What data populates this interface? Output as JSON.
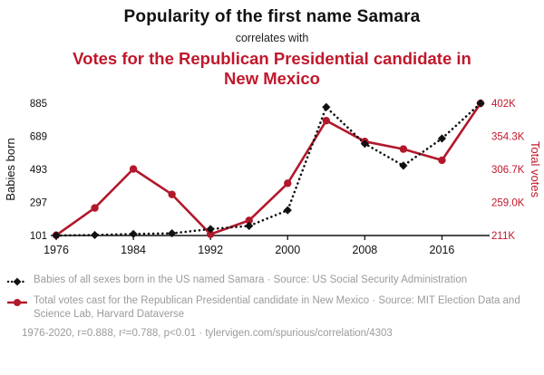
{
  "header": {
    "title": "Popularity of the first name Samara",
    "subtitle": "correlates with",
    "red_title": "Votes for the Republican Presidential candidate in New Mexico"
  },
  "colors": {
    "accent_red": "#c0182c",
    "series_red": "#b2182b",
    "series_black": "#111111",
    "legend_gray": "#9b9b9b"
  },
  "chart_data": {
    "type": "line",
    "x_range": [
      1976,
      2020
    ],
    "x_ticks": [
      1976,
      1984,
      1992,
      2000,
      2008,
      2016
    ],
    "left_axis": {
      "label": "Babies born",
      "range": [
        101,
        885
      ],
      "ticks": [
        101,
        297,
        493,
        689,
        885
      ],
      "tick_labels": [
        "101",
        "297",
        "493",
        "689",
        "885"
      ],
      "color": "#111111"
    },
    "right_axis": {
      "label": "Total votes",
      "range": [
        211000,
        402000
      ],
      "ticks": [
        211000,
        259000,
        306700,
        354300,
        402000
      ],
      "tick_labels": [
        "211K",
        "259.0K",
        "306.7K",
        "354.3K",
        "402K"
      ],
      "color": "#c0182c"
    },
    "series": [
      {
        "name": "Total votes cast for the Republican Presidential candidate in New Mexico",
        "axis": "right",
        "color": "#b2182b",
        "marker": "circle",
        "dash": false,
        "x": [
          1976,
          1980,
          1984,
          1988,
          1992,
          1996,
          2000,
          2004,
          2008,
          2012,
          2016,
          2020
        ],
        "values": [
          211419,
          250779,
          307101,
          270341,
          212824,
          232751,
          286417,
          376930,
          346832,
          335788,
          319667,
          401894
        ]
      },
      {
        "name": "Babies of all sexes born in the US named Samara",
        "axis": "left",
        "color": "#111111",
        "marker": "diamond",
        "dash": true,
        "x": [
          1976,
          1980,
          1984,
          1988,
          1992,
          1996,
          2000,
          2004,
          2008,
          2012,
          2016,
          2020
        ],
        "values": [
          101,
          104,
          110,
          114,
          139,
          158,
          251,
          862,
          645,
          515,
          676,
          885
        ]
      }
    ],
    "title": "Popularity of the first name Samara correlates with Votes for the Republican Presidential candidate in New Mexico",
    "grid": false,
    "legend_position": "bottom"
  },
  "legend": {
    "items": [
      {
        "label": "Babies of all sexes born in the US named Samara · Source: US Social Security Administration",
        "color": "#111111",
        "marker": "diamond",
        "dash": true
      },
      {
        "label": "Total votes cast for the Republican Presidential candidate in New Mexico · Source: MIT Election Data and Science Lab, Harvard Dataverse",
        "color": "#b2182b",
        "marker": "circle",
        "dash": false
      }
    ]
  },
  "footer": {
    "text": "1976-2020, r=0.888, r²=0.788, p<0.01 · tylervigen.com/spurious/correlation/4303"
  }
}
